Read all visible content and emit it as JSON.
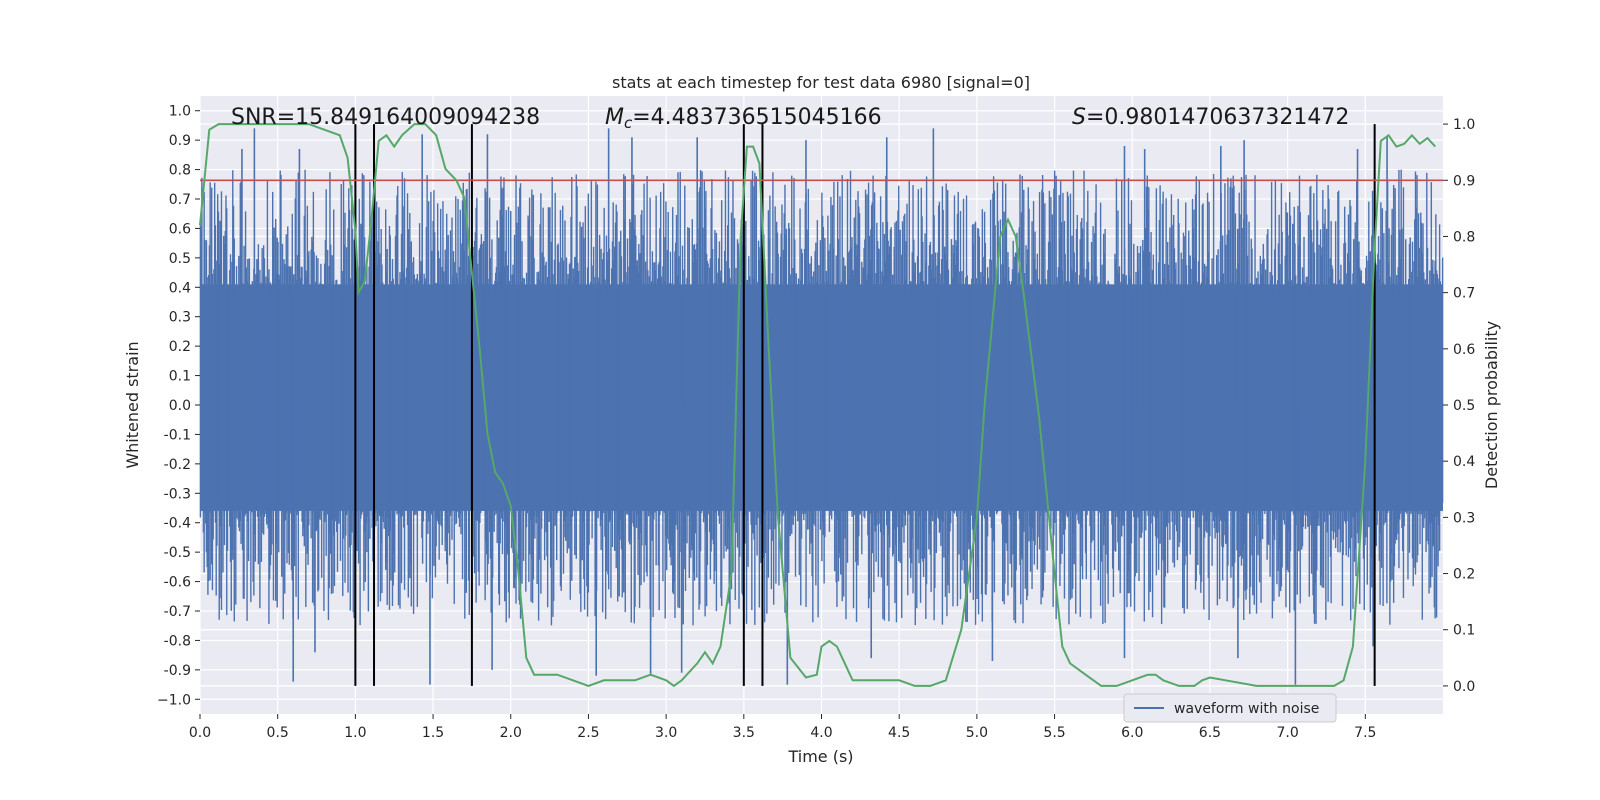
{
  "chart_data": {
    "type": "line",
    "title": "stats at each timestep for test data 6980 [signal=0]",
    "xlabel": "Time (s)",
    "ylabel_left": "Whitened strain",
    "ylabel_right": "Detection probability",
    "xlim": [
      0.0,
      8.0
    ],
    "ylim_left": [
      -1.05,
      1.05
    ],
    "ylim_right": [
      -0.05,
      1.05
    ],
    "x_ticks": [
      "0.0",
      "0.5",
      "1.0",
      "1.5",
      "2.0",
      "2.5",
      "3.0",
      "3.5",
      "4.0",
      "4.5",
      "5.0",
      "5.5",
      "6.0",
      "6.5",
      "7.0",
      "7.5"
    ],
    "y_ticks_left": [
      "1.0",
      "0.9",
      "0.8",
      "0.7",
      "0.6",
      "0.5",
      "0.4",
      "0.3",
      "0.2",
      "0.1",
      "0.0",
      "-0.1",
      "-0.2",
      "-0.3",
      "-0.4",
      "-0.5",
      "-0.6",
      "-0.7",
      "-0.8",
      "-0.9",
      "−1.0"
    ],
    "y_ticks_right": [
      "1.0",
      "0.9",
      "0.8",
      "0.7",
      "0.6",
      "0.5",
      "0.4",
      "0.3",
      "0.2",
      "0.1",
      "0.0"
    ],
    "annotations": {
      "snr": "SNR=15.849164009094238",
      "mc_symbol": "M",
      "mc_sub": "c",
      "mc_value": "=4.483736515045166",
      "s_symbol": "S",
      "s_value": "=0.9801470637321472"
    },
    "threshold": {
      "value": 0.9,
      "axis": "right",
      "color": "#c44e52"
    },
    "detection_markers_x": [
      1.0,
      1.12,
      1.75,
      3.5,
      3.62,
      7.56
    ],
    "waveform": {
      "name": "waveform with noise",
      "color": "#4c72b0",
      "description": "dense noise band approx. between -0.35 and 0.40 with spikes to about +/-0.95",
      "spikes_up": [
        [
          0.35,
          0.94
        ],
        [
          0.27,
          0.87
        ],
        [
          0.64,
          0.87
        ],
        [
          1.0,
          0.92
        ],
        [
          1.43,
          0.92
        ],
        [
          1.85,
          0.92
        ],
        [
          2.63,
          0.94
        ],
        [
          2.78,
          0.91
        ],
        [
          3.2,
          0.91
        ],
        [
          3.9,
          0.9
        ],
        [
          4.42,
          0.91
        ],
        [
          4.72,
          0.94
        ],
        [
          5.95,
          0.88
        ],
        [
          6.08,
          0.87
        ],
        [
          6.57,
          0.88
        ],
        [
          6.72,
          0.9
        ],
        [
          7.45,
          0.87
        ],
        [
          7.64,
          0.91
        ]
      ],
      "spikes_down": [
        [
          0.6,
          -0.94
        ],
        [
          0.74,
          -0.84
        ],
        [
          1.48,
          -0.95
        ],
        [
          1.88,
          -0.9
        ],
        [
          2.55,
          -0.92
        ],
        [
          2.9,
          -0.92
        ],
        [
          3.1,
          -0.91
        ],
        [
          3.62,
          -0.95
        ],
        [
          3.78,
          -0.95
        ],
        [
          4.32,
          -0.86
        ],
        [
          5.1,
          -0.87
        ],
        [
          5.95,
          -0.86
        ],
        [
          6.68,
          -0.86
        ],
        [
          7.05,
          -0.95
        ],
        [
          7.55,
          -0.82
        ]
      ]
    },
    "probability": {
      "name": "detection probability",
      "color": "#55a868",
      "x": [
        0.0,
        0.06,
        0.12,
        0.2,
        0.3,
        0.5,
        0.7,
        0.8,
        0.9,
        0.95,
        1.0,
        1.02,
        1.06,
        1.1,
        1.15,
        1.2,
        1.25,
        1.3,
        1.38,
        1.45,
        1.52,
        1.58,
        1.65,
        1.7,
        1.8,
        1.85,
        1.9,
        1.95,
        2.0,
        2.05,
        2.1,
        2.15,
        2.2,
        2.3,
        2.4,
        2.5,
        2.6,
        2.7,
        2.8,
        2.9,
        3.0,
        3.05,
        3.1,
        3.2,
        3.25,
        3.3,
        3.35,
        3.42,
        3.48,
        3.52,
        3.56,
        3.6,
        3.66,
        3.72,
        3.8,
        3.9,
        3.97,
        4.0,
        4.05,
        4.1,
        4.15,
        4.2,
        4.3,
        4.4,
        4.5,
        4.6,
        4.7,
        4.8,
        4.9,
        5.0,
        5.05,
        5.1,
        5.15,
        5.2,
        5.25,
        5.3,
        5.4,
        5.5,
        5.55,
        5.6,
        5.7,
        5.8,
        5.9,
        6.0,
        6.1,
        6.15,
        6.2,
        6.3,
        6.4,
        6.45,
        6.5,
        6.6,
        6.8,
        7.0,
        7.2,
        7.3,
        7.36,
        7.42,
        7.5,
        7.56,
        7.6,
        7.65,
        7.7,
        7.75,
        7.8,
        7.85,
        7.9,
        7.95
      ],
      "y": [
        0.82,
        0.99,
        1.0,
        1.0,
        1.0,
        1.0,
        1.0,
        0.99,
        0.98,
        0.94,
        0.81,
        0.7,
        0.72,
        0.82,
        0.97,
        0.98,
        0.96,
        0.98,
        1.0,
        1.0,
        0.98,
        0.92,
        0.9,
        0.87,
        0.6,
        0.45,
        0.38,
        0.36,
        0.32,
        0.2,
        0.05,
        0.02,
        0.02,
        0.02,
        0.01,
        0.0,
        0.01,
        0.01,
        0.01,
        0.02,
        0.01,
        0.0,
        0.01,
        0.04,
        0.06,
        0.04,
        0.07,
        0.2,
        0.8,
        0.96,
        0.96,
        0.93,
        0.6,
        0.3,
        0.05,
        0.015,
        0.02,
        0.07,
        0.08,
        0.07,
        0.04,
        0.01,
        0.01,
        0.01,
        0.01,
        0.0,
        0.0,
        0.01,
        0.1,
        0.3,
        0.5,
        0.65,
        0.8,
        0.83,
        0.8,
        0.7,
        0.48,
        0.2,
        0.07,
        0.04,
        0.02,
        0.0,
        0.0,
        0.01,
        0.02,
        0.02,
        0.01,
        0.0,
        0.0,
        0.01,
        0.015,
        0.01,
        0.0,
        0.0,
        0.0,
        0.0,
        0.01,
        0.07,
        0.4,
        0.78,
        0.97,
        0.98,
        0.96,
        0.965,
        0.98,
        0.965,
        0.975,
        0.96
      ]
    },
    "legend": {
      "entries": [
        "waveform with noise"
      ],
      "placement": "bottom-right"
    }
  }
}
